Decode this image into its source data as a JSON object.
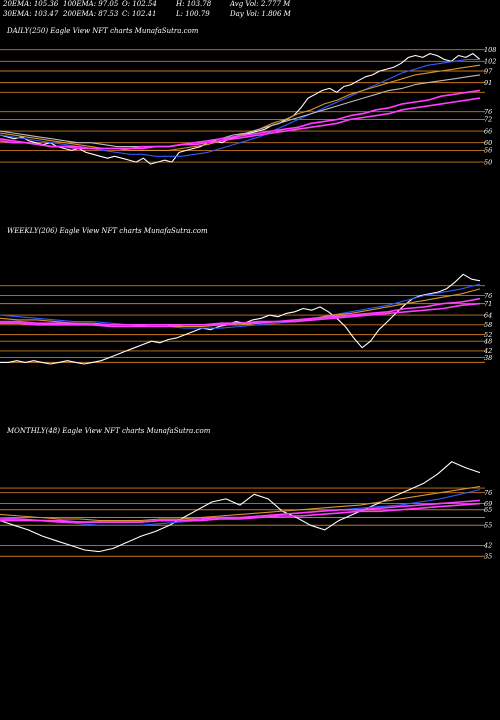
{
  "header": {
    "row1": [
      "20EMA: 105.36",
      "100EMA: 97.05",
      "O: 102.54",
      "H: 103.78",
      "Avg Vol: 2.777  M"
    ],
    "row2": [
      "30EMA: 103.47",
      "200EMA: 87.53",
      "C: 102.41",
      "L: 100.79",
      "Day Vol: 1.806  M"
    ]
  },
  "colors": {
    "background": "#000000",
    "price": "#ffffff",
    "level_line": "#c8781e",
    "ema_blue": "#2f5bff",
    "ema_magenta": "#ff3cff",
    "ema_orange": "#d8962a",
    "ema_grey": "#bbbbbb"
  },
  "chart_data": [
    {
      "type": "line",
      "title": "DAILY(250) Eagle  View  NFT charts MunafaSutra.com",
      "ylim": [
        33,
        113
      ],
      "yticks": [
        108,
        102,
        97,
        91,
        76,
        72,
        66,
        60,
        56,
        50
      ],
      "levels": [
        108,
        102,
        97,
        91,
        86,
        76,
        72,
        66,
        60,
        56,
        50
      ],
      "series": [
        {
          "role": "price",
          "color": "#ffffff",
          "values": [
            64,
            63,
            62,
            63,
            61,
            60,
            59,
            60,
            58,
            57,
            56,
            57,
            55,
            54,
            53,
            52,
            53,
            52,
            51,
            50,
            52,
            49,
            50,
            51,
            50,
            55,
            56,
            57,
            58,
            60,
            61,
            60,
            62,
            63,
            64,
            65,
            66,
            67,
            69,
            70,
            72,
            74,
            78,
            83,
            85,
            87,
            88,
            86,
            89,
            90,
            92,
            94,
            95,
            97,
            98,
            99,
            101,
            104,
            105,
            104,
            106,
            105,
            103,
            102,
            105,
            104,
            106,
            103
          ]
        },
        {
          "role": "ema",
          "color": "#2f5bff",
          "values": [
            64,
            63,
            62,
            61,
            60,
            59,
            58,
            57,
            56,
            55,
            54,
            54,
            53,
            53,
            53,
            54,
            55,
            57,
            59,
            61,
            63,
            66,
            69,
            72,
            75,
            78,
            81,
            84,
            87,
            90,
            93,
            96,
            98,
            100,
            101,
            102,
            103,
            103
          ]
        },
        {
          "role": "ema",
          "color": "#d8962a",
          "values": [
            65,
            64,
            63,
            62,
            61,
            60,
            59,
            58,
            57,
            57,
            56,
            56,
            56,
            56,
            57,
            58,
            59,
            61,
            63,
            65,
            67,
            70,
            72,
            75,
            77,
            80,
            82,
            85,
            87,
            89,
            91,
            93,
            95,
            96,
            97,
            98,
            99,
            100
          ]
        },
        {
          "role": "ema",
          "color": "#bbbbbb",
          "values": [
            66,
            65,
            64,
            63,
            62,
            61,
            60,
            60,
            59,
            58,
            58,
            58,
            58,
            58,
            59,
            60,
            61,
            62,
            64,
            65,
            67,
            69,
            71,
            73,
            75,
            77,
            79,
            81,
            83,
            85,
            87,
            88,
            90,
            91,
            92,
            93,
            94,
            95
          ]
        },
        {
          "role": "ema",
          "color": "#ff3cff",
          "values": [
            62,
            61,
            60,
            59,
            58,
            58,
            57,
            57,
            57,
            57,
            57,
            57,
            58,
            58,
            59,
            60,
            61,
            62,
            63,
            64,
            65,
            66,
            67,
            68,
            70,
            71,
            72,
            74,
            75,
            77,
            78,
            80,
            81,
            82,
            84,
            85,
            86,
            87
          ]
        },
        {
          "role": "ema",
          "color": "#ff3cff",
          "values": [
            61,
            60,
            60,
            59,
            58,
            58,
            58,
            57,
            57,
            57,
            57,
            58,
            58,
            58,
            59,
            59,
            60,
            61,
            62,
            63,
            64,
            65,
            66,
            67,
            68,
            69,
            70,
            72,
            73,
            74,
            75,
            77,
            78,
            79,
            80,
            81,
            82,
            83
          ]
        }
      ]
    },
    {
      "type": "line",
      "title": "WEEKLY(206) Eagle  View  NFT charts MunafaSutra.com",
      "ylim": [
        15,
        110
      ],
      "yticks": [
        76,
        71,
        64,
        58,
        52,
        48,
        42,
        38
      ],
      "levels": [
        82,
        76,
        71,
        64,
        58,
        52,
        48,
        42,
        38,
        35
      ],
      "series": [
        {
          "role": "price",
          "color": "#ffffff",
          "values": [
            35,
            35,
            36,
            35,
            36,
            35,
            34,
            35,
            36,
            35,
            34,
            35,
            36,
            38,
            40,
            42,
            44,
            46,
            48,
            47,
            49,
            50,
            52,
            54,
            56,
            55,
            57,
            58,
            60,
            59,
            61,
            62,
            64,
            63,
            65,
            66,
            68,
            67,
            69,
            66,
            62,
            57,
            50,
            44,
            48,
            55,
            60,
            65,
            70,
            74,
            76,
            77,
            78,
            80,
            84,
            89,
            86,
            85
          ]
        },
        {
          "role": "ema",
          "color": "#2f5bff",
          "values": [
            64,
            63,
            62,
            61,
            60,
            60,
            59,
            58,
            57,
            57,
            56,
            56,
            56,
            57,
            58,
            59,
            60,
            62,
            64,
            66,
            68,
            70,
            73,
            76,
            78,
            80,
            83
          ]
        },
        {
          "role": "ema",
          "color": "#d8962a",
          "values": [
            62,
            61,
            61,
            60,
            59,
            59,
            58,
            58,
            57,
            57,
            57,
            57,
            58,
            58,
            59,
            60,
            61,
            62,
            64,
            65,
            67,
            69,
            71,
            73,
            75,
            77,
            80
          ]
        },
        {
          "role": "ema",
          "color": "#ff3cff",
          "values": [
            60,
            60,
            59,
            59,
            59,
            58,
            58,
            58,
            58,
            58,
            58,
            58,
            59,
            59,
            60,
            60,
            61,
            62,
            63,
            64,
            65,
            66,
            68,
            69,
            71,
            72,
            74
          ]
        },
        {
          "role": "ema",
          "color": "#ff3cff",
          "values": [
            59,
            59,
            58,
            58,
            58,
            58,
            57,
            57,
            57,
            57,
            58,
            58,
            58,
            59,
            59,
            60,
            60,
            61,
            62,
            63,
            64,
            65,
            66,
            67,
            68,
            70,
            71
          ]
        }
      ]
    },
    {
      "type": "line",
      "title": "MONTHLY(48) Eagle  View  NFT charts MunafaSutra.com",
      "ylim": [
        10,
        110
      ],
      "yticks": [
        76,
        69,
        65,
        55,
        42,
        35
      ],
      "levels": [
        79,
        76,
        69,
        65,
        60,
        55,
        42,
        35
      ],
      "series": [
        {
          "role": "price",
          "color": "#ffffff",
          "values": [
            58,
            55,
            52,
            48,
            45,
            42,
            39,
            38,
            40,
            44,
            48,
            51,
            55,
            60,
            65,
            70,
            72,
            68,
            75,
            72,
            64,
            60,
            55,
            52,
            58,
            62,
            66,
            70,
            74,
            78,
            82,
            88,
            96,
            92,
            89
          ]
        },
        {
          "role": "ema",
          "color": "#2f5bff",
          "values": [
            60,
            59,
            58,
            57,
            56,
            55,
            55,
            55,
            56,
            57,
            58,
            59,
            60,
            61,
            62,
            63,
            64,
            65,
            66,
            67,
            68,
            70,
            72,
            75,
            78
          ]
        },
        {
          "role": "ema",
          "color": "#d8962a",
          "values": [
            62,
            61,
            60,
            59,
            59,
            58,
            58,
            58,
            59,
            59,
            60,
            61,
            62,
            63,
            64,
            65,
            66,
            67,
            68,
            70,
            72,
            74,
            76,
            78,
            80
          ]
        },
        {
          "role": "ema",
          "color": "#ff3cff",
          "values": [
            59,
            59,
            58,
            58,
            57,
            57,
            57,
            57,
            58,
            58,
            59,
            60,
            60,
            61,
            62,
            63,
            64,
            65,
            65,
            66,
            67,
            68,
            69,
            70,
            71
          ]
        },
        {
          "role": "ema",
          "color": "#ff3cff",
          "values": [
            58,
            58,
            58,
            57,
            57,
            57,
            57,
            57,
            58,
            58,
            58,
            59,
            59,
            60,
            61,
            61,
            62,
            63,
            64,
            64,
            65,
            66,
            67,
            68,
            69
          ]
        }
      ]
    }
  ]
}
